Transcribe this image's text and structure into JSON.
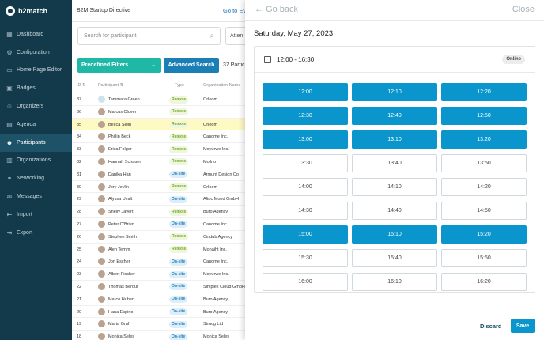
{
  "app": {
    "logo": "b2match",
    "event_title": "B2M Startup Directive",
    "goto_link": "Go to Ev"
  },
  "sidebar": {
    "items": [
      {
        "label": "Dashboard",
        "icon": "dashboard-icon",
        "glyph": "▦"
      },
      {
        "label": "Configuration",
        "icon": "gear-icon",
        "glyph": "⚙"
      },
      {
        "label": "Home Page Editor",
        "icon": "file-icon",
        "glyph": "▭"
      },
      {
        "label": "Badges",
        "icon": "badge-icon",
        "glyph": "▣"
      },
      {
        "label": "Organizers",
        "icon": "organizers-icon",
        "glyph": "☺"
      },
      {
        "label": "Agenda",
        "icon": "calendar-icon",
        "glyph": "▤"
      },
      {
        "label": "Participants",
        "icon": "users-icon",
        "glyph": "☻"
      },
      {
        "label": "Organizations",
        "icon": "building-icon",
        "glyph": "▥"
      },
      {
        "label": "Networking",
        "icon": "network-icon",
        "glyph": "⚭"
      },
      {
        "label": "Messages",
        "icon": "message-icon",
        "glyph": "✉"
      },
      {
        "label": "Import",
        "icon": "import-icon",
        "glyph": "⇤"
      },
      {
        "label": "Export",
        "icon": "export-icon",
        "glyph": "⇥"
      }
    ],
    "active": "Participants"
  },
  "main": {
    "search_placeholder": "Search for participant",
    "attendance_filter": "Atten",
    "predefined_filters": "Predefined Filters",
    "advanced_search": "Advanced Search",
    "count": "37 Partic",
    "columns": {
      "id": "ID",
      "participant": "Participant",
      "type": "Type",
      "organization": "Organization Name"
    },
    "rows": [
      {
        "id": "37",
        "name": "Tammara Green",
        "type": "Remote",
        "org": "Orloom",
        "placeholder_avatar": true
      },
      {
        "id": "36",
        "name": "Marcus Clover",
        "type": "Remote",
        "org": ""
      },
      {
        "id": "35",
        "name": "Becca Selin",
        "type": "Remote",
        "org": "Orloom",
        "highlight": true
      },
      {
        "id": "34",
        "name": "Phillip Beck",
        "type": "Remote",
        "org": "Canome Inc."
      },
      {
        "id": "33",
        "name": "Erica Folger",
        "type": "Remote",
        "org": "Moyurwe Inc."
      },
      {
        "id": "32",
        "name": "Hannah Schauer",
        "type": "Remote",
        "org": "Mollno"
      },
      {
        "id": "31",
        "name": "Danika Han",
        "type": "On-site",
        "org": "Armunt Design Co"
      },
      {
        "id": "30",
        "name": "Jory Jevlin",
        "type": "Remote",
        "org": "Orloom"
      },
      {
        "id": "29",
        "name": "Alyssa Uvalt",
        "type": "On-site",
        "org": "Altuc Mond GmbH"
      },
      {
        "id": "28",
        "name": "Shelly Javert",
        "type": "Remote",
        "org": "Buro Agency"
      },
      {
        "id": "27",
        "name": "Peter O'Brien",
        "type": "On-site",
        "org": "Canome Inc."
      },
      {
        "id": "26",
        "name": "Stephen Smith",
        "type": "Remote",
        "org": "Cindub Agency"
      },
      {
        "id": "25",
        "name": "Alen Temm",
        "type": "Remote",
        "org": "Monaiht Inc."
      },
      {
        "id": "24",
        "name": "Jon Escher",
        "type": "On-site",
        "org": "Canome Inc."
      },
      {
        "id": "23",
        "name": "Albert Fischer",
        "type": "On-site",
        "org": "Moyurwe Inc."
      },
      {
        "id": "22",
        "name": "Thomas Berdut",
        "type": "On-site",
        "org": "Simplex Cloud GmbH"
      },
      {
        "id": "21",
        "name": "Marco Hubert",
        "type": "On-site",
        "org": "Buro Agency"
      },
      {
        "id": "20",
        "name": "Hana Espino",
        "type": "On-site",
        "org": "Buro Agency"
      },
      {
        "id": "19",
        "name": "Marta Graf",
        "type": "On-site",
        "org": "Strucg Ltd"
      },
      {
        "id": "18",
        "name": "Monica Seles",
        "type": "On-site",
        "org": "Monica Seles"
      }
    ]
  },
  "panel": {
    "go_back": "Go back",
    "close": "Close",
    "date": "Saturday, May 27, 2023",
    "slot_range": "12:00 - 16:30",
    "badge": "Online",
    "discard": "Discard",
    "save": "Save",
    "slots": [
      {
        "time": "12:00",
        "selected": true
      },
      {
        "time": "12:10",
        "selected": true
      },
      {
        "time": "12:20",
        "selected": true
      },
      {
        "time": "12:30",
        "selected": true
      },
      {
        "time": "12:40",
        "selected": true
      },
      {
        "time": "12:50",
        "selected": true
      },
      {
        "time": "13:00",
        "selected": true
      },
      {
        "time": "13:10",
        "selected": true
      },
      {
        "time": "13:20",
        "selected": true
      },
      {
        "time": "13:30",
        "selected": false
      },
      {
        "time": "13:40",
        "selected": false
      },
      {
        "time": "13:50",
        "selected": false
      },
      {
        "time": "14:00",
        "selected": false
      },
      {
        "time": "14:10",
        "selected": false
      },
      {
        "time": "14:20",
        "selected": false
      },
      {
        "time": "14:30",
        "selected": false
      },
      {
        "time": "14:40",
        "selected": false
      },
      {
        "time": "14:50",
        "selected": false
      },
      {
        "time": "15:00",
        "selected": true
      },
      {
        "time": "15:10",
        "selected": true
      },
      {
        "time": "15:20",
        "selected": true
      },
      {
        "time": "15:30",
        "selected": false
      },
      {
        "time": "15:40",
        "selected": false
      },
      {
        "time": "15:50",
        "selected": false
      },
      {
        "time": "16:00",
        "selected": false
      },
      {
        "time": "16:10",
        "selected": false
      },
      {
        "time": "16:20",
        "selected": false
      }
    ]
  }
}
